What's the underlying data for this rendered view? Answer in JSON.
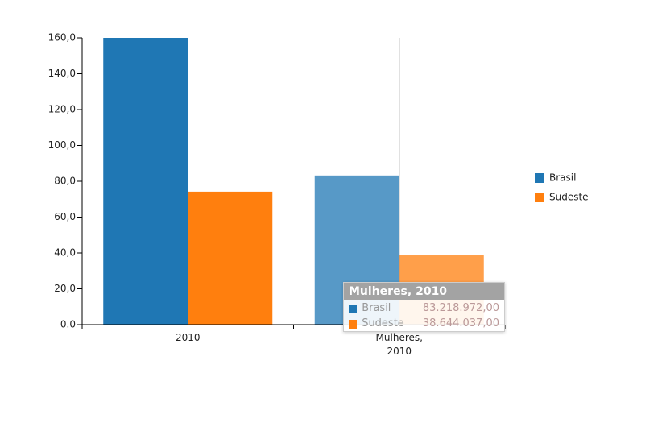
{
  "chart_data": {
    "type": "bar",
    "categories": [
      "2010",
      "Mulheres, 2010"
    ],
    "series": [
      {
        "name": "Brasil",
        "color": "#1f77b4",
        "values": [
          160,
          83.218972
        ],
        "value_labels": [
          null,
          "83.218.972,00"
        ]
      },
      {
        "name": "Sudeste",
        "color": "#ff7f0e",
        "values": [
          74.2,
          38.644037
        ],
        "value_labels": [
          null,
          "38.644.037,00"
        ]
      }
    ],
    "ylim": [
      0,
      160
    ],
    "yticks": [
      {
        "value": 0,
        "label": "0.0"
      },
      {
        "value": 20,
        "label": "20,0"
      },
      {
        "value": 40,
        "label": "40,0"
      },
      {
        "value": 60,
        "label": "60,0"
      },
      {
        "value": 80,
        "label": "80,0"
      },
      {
        "value": 100,
        "label": "100,0"
      },
      {
        "value": 120,
        "label": "120,0"
      },
      {
        "value": 140,
        "label": "140,0"
      },
      {
        "value": 160,
        "label": "160,0"
      }
    ],
    "legend": "right"
  }
}
